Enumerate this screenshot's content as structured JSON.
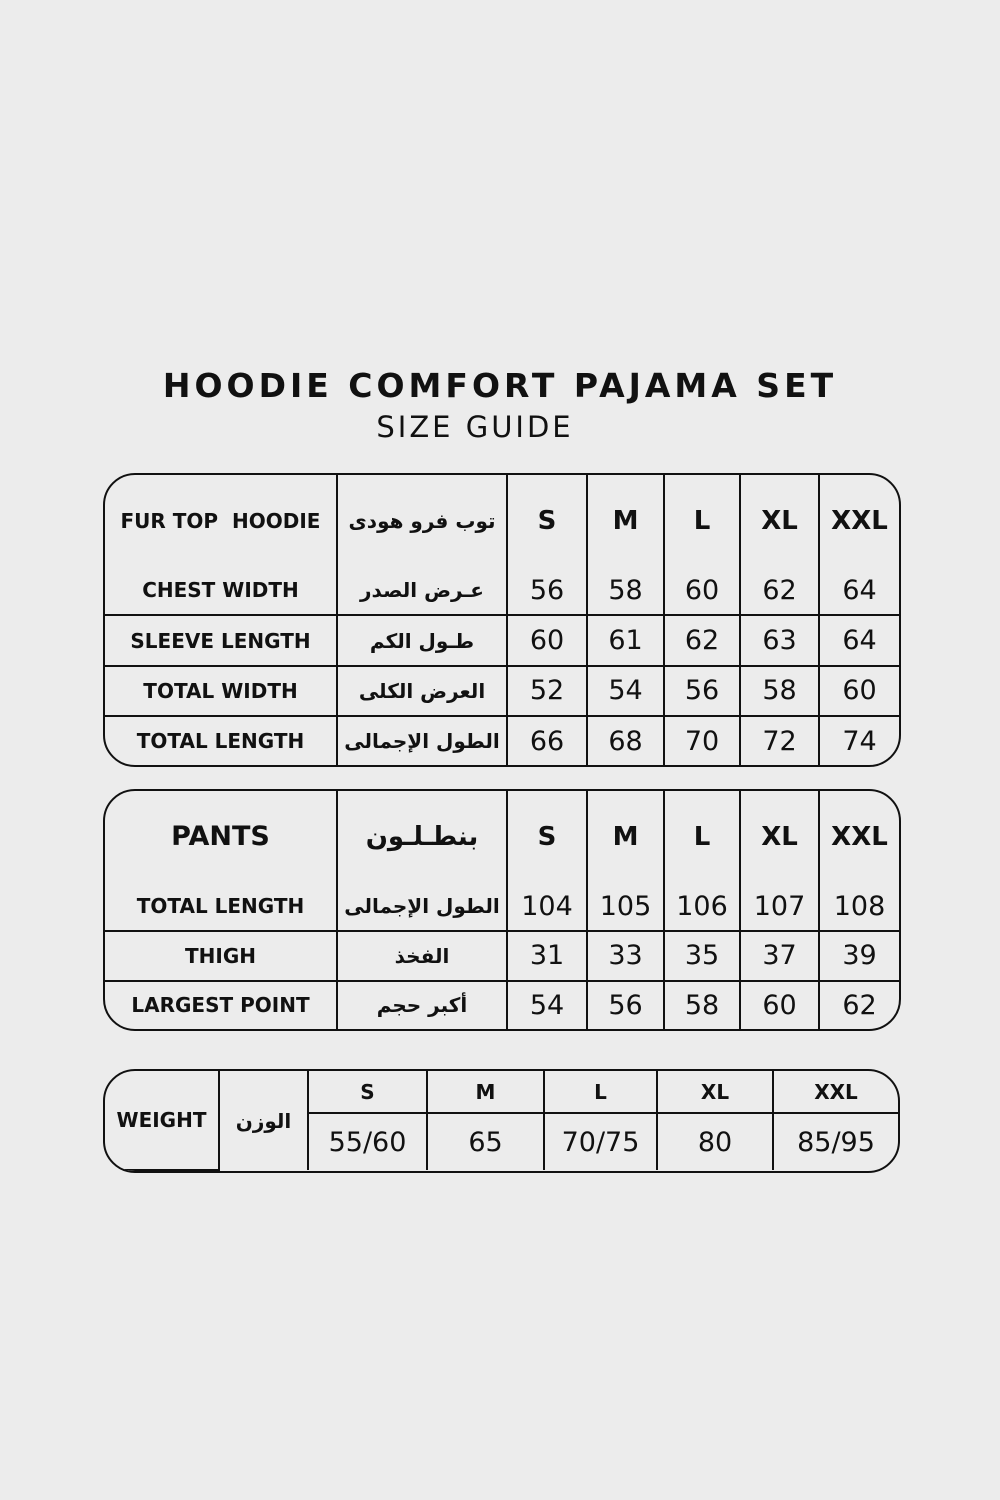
{
  "title": "HOODIE COMFORT PAJAMA SET",
  "subtitle": "SIZE GUIDE",
  "sizes": [
    "S",
    "M",
    "L",
    "XL",
    "XXL"
  ],
  "top": {
    "header_en": "FUR TOP  HOODIE",
    "header_ar": "توب فرو هودى",
    "rows": [
      {
        "en": "CHEST WIDTH",
        "ar": "عـرض الصدر",
        "values": [
          "56",
          "58",
          "60",
          "62",
          "64"
        ]
      },
      {
        "en": "SLEEVE LENGTH",
        "ar": "طـول الكم",
        "values": [
          "60",
          "61",
          "62",
          "63",
          "64"
        ]
      },
      {
        "en": "TOTAL WIDTH",
        "ar": "العرض الكلى",
        "values": [
          "52",
          "54",
          "56",
          "58",
          "60"
        ]
      },
      {
        "en": "TOTAL LENGTH",
        "ar": "الطول الإجمالى",
        "values": [
          "66",
          "68",
          "70",
          "72",
          "74"
        ]
      }
    ]
  },
  "pants": {
    "header_en": "PANTS",
    "header_ar": "بنطـلـون",
    "rows": [
      {
        "en": "TOTAL LENGTH",
        "ar": "الطول الإجمالى",
        "values": [
          "104",
          "105",
          "106",
          "107",
          "108"
        ]
      },
      {
        "en": "THIGH",
        "ar": "الفخذ",
        "values": [
          "31",
          "33",
          "35",
          "37",
          "39"
        ]
      },
      {
        "en": "LARGEST POINT",
        "ar": "أكبر حجم",
        "values": [
          "54",
          "56",
          "58",
          "60",
          "62"
        ]
      }
    ]
  },
  "weight": {
    "label_en": "WEIGHT",
    "label_ar": "الوزن",
    "values": [
      "55/60",
      "65",
      "70/75",
      "80",
      "85/95"
    ]
  }
}
